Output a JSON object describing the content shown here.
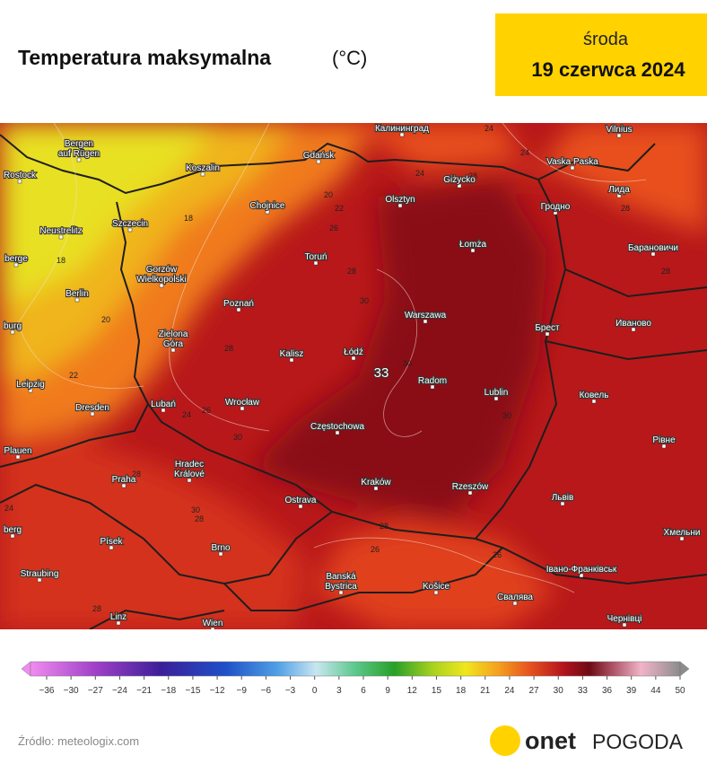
{
  "header": {
    "title": "Temperatura maksymalna",
    "unit": "(°C)",
    "day": "środa",
    "date": "19 czerwca 2024"
  },
  "map": {
    "max_label": "33",
    "cities": [
      [
        "Калининград"
      ],
      [
        "Vilnius"
      ],
      [
        "Bergen",
        "auf Rügen"
      ],
      [
        "Rostock"
      ],
      [
        "Koszalin"
      ],
      [
        "Gdańsk"
      ],
      [
        "Vaska Paska"
      ],
      [
        "Giżycko"
      ],
      [
        "Olsztyn"
      ],
      [
        "Лида"
      ],
      [
        "Chojnice"
      ],
      [
        "Szczecin"
      ],
      [
        "Гродно"
      ],
      [
        "Neustrelitz"
      ],
      [
        "Łomża"
      ],
      [
        "Барановичи"
      ],
      [
        "Toruń"
      ],
      [
        "berge"
      ],
      [
        "Gorzów",
        "Wielkopolski"
      ],
      [
        "Berlin"
      ],
      [
        "Poznań"
      ],
      [
        "Warszawa"
      ],
      [
        "Брест"
      ],
      [
        "Иваново"
      ],
      [
        "burg"
      ],
      [
        "Zielona",
        "Góra"
      ],
      [
        "Kalisz"
      ],
      [
        "Łódź"
      ],
      [
        "Radom"
      ],
      [
        "Leipzig"
      ],
      [
        "Lublin"
      ],
      [
        "Ковель"
      ],
      [
        "Lubań"
      ],
      [
        "Wrocław"
      ],
      [
        "Dresden"
      ],
      [
        "Częstochowa"
      ],
      [
        "Рівне"
      ],
      [
        "Plauen"
      ],
      [
        "Hradec",
        "Králové"
      ],
      [
        "Praha"
      ],
      [
        "Kraków"
      ],
      [
        "Rzeszów"
      ],
      [
        "Ostrava"
      ],
      [
        "Львів"
      ],
      [
        "berg"
      ],
      [
        "Хмельни"
      ],
      [
        "Písek"
      ],
      [
        "Brno"
      ],
      [
        "Straubing"
      ],
      [
        "Banská",
        "Bystrica"
      ],
      [
        "Івано-Франківськ"
      ],
      [
        "Košice"
      ],
      [
        "Свалява"
      ],
      [
        "Linz"
      ],
      [
        "Wien"
      ],
      [
        "Чернівці"
      ]
    ],
    "isotherms": [
      "24",
      "24",
      "24",
      "28",
      "20",
      "22",
      "18",
      "26",
      "28",
      "18",
      "28",
      "28",
      "20",
      "30",
      "28",
      "22",
      "30",
      "24",
      "26",
      "30",
      "30",
      "28",
      "30",
      "28",
      "24",
      "28",
      "26",
      "26",
      "28"
    ]
  },
  "legend": {
    "ticks": [
      "−36",
      "−30",
      "−27",
      "−24",
      "−21",
      "−18",
      "−15",
      "−12",
      "−9",
      "−6",
      "−3",
      "0",
      "3",
      "6",
      "9",
      "12",
      "15",
      "18",
      "21",
      "24",
      "27",
      "30",
      "33",
      "36",
      "39",
      "44",
      "50"
    ]
  },
  "footer": {
    "source": "Źródło: meteologix.com",
    "brand": "onet",
    "brand_sub": "POGODA"
  }
}
